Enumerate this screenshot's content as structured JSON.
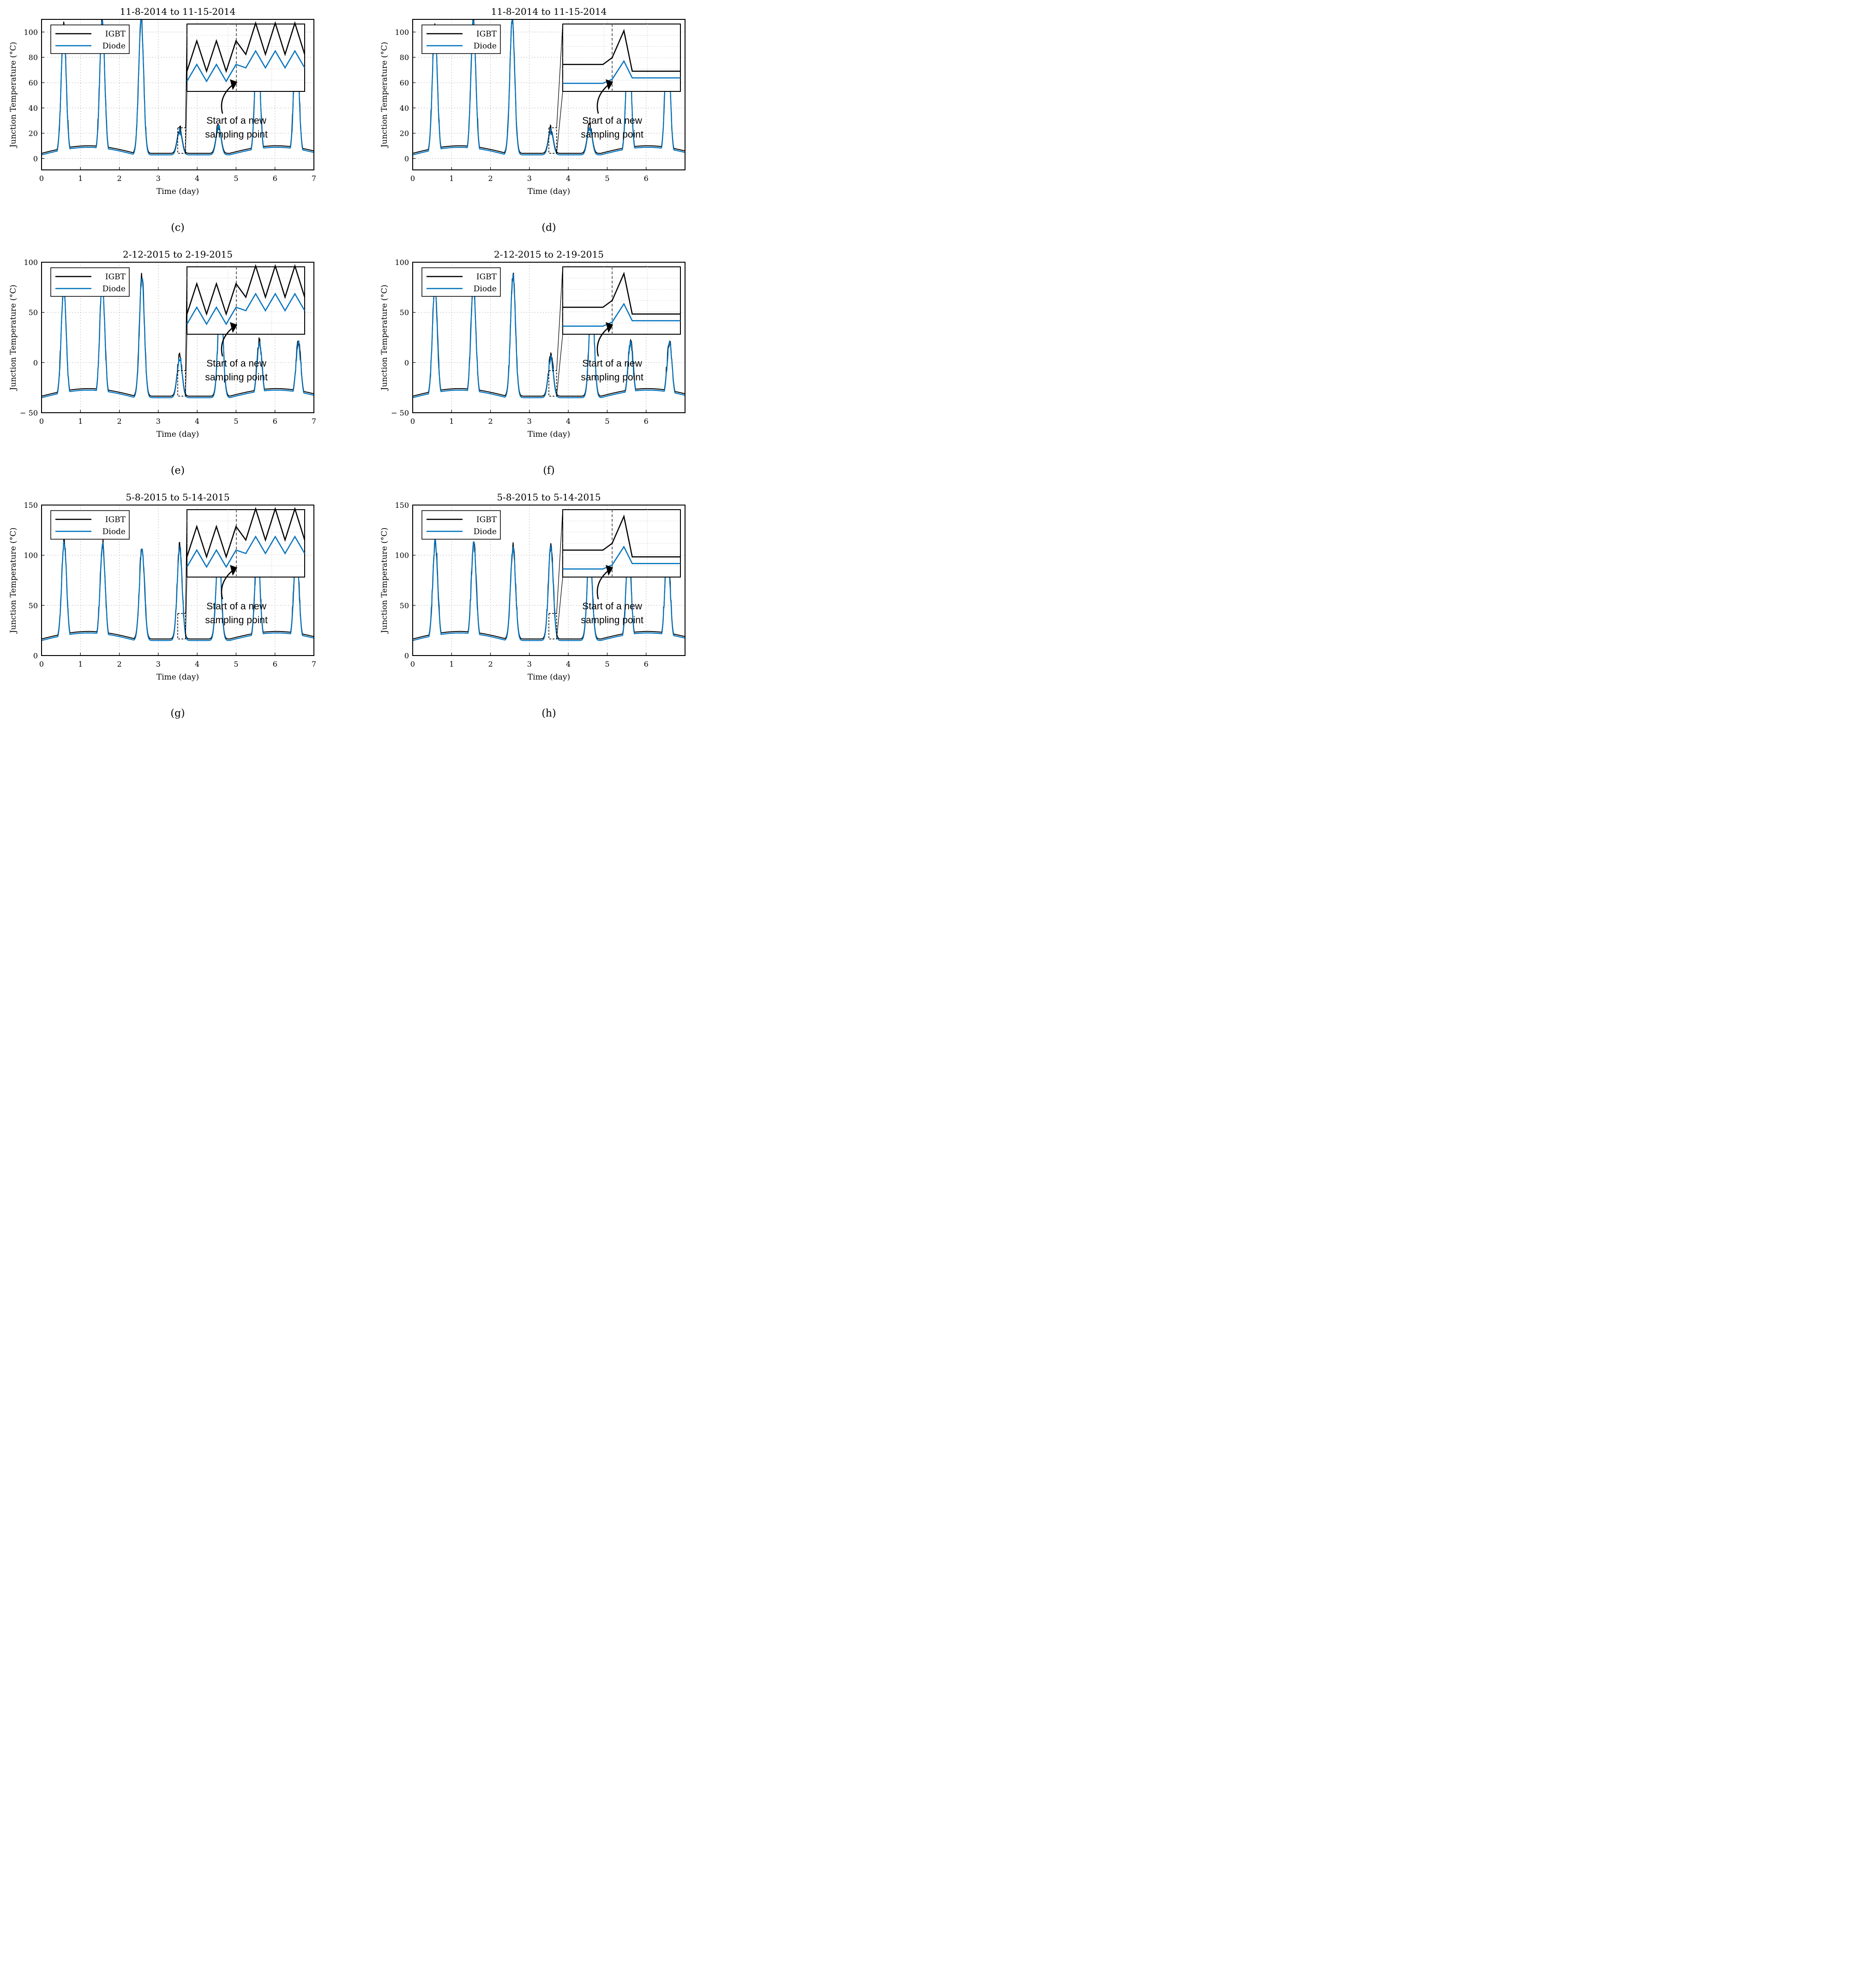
{
  "colors": {
    "igbt": "#000000",
    "diode": "#0072BD",
    "grid": "#b0b0b0",
    "axis": "#000000"
  },
  "chart_data": [
    {
      "caption": "(c)",
      "type": "line",
      "title": "11-8-2014 to 11-15-2014",
      "xlabel": "Time (day)",
      "ylabel": "Junction Temperature (°C)",
      "xlim": [
        0,
        7
      ],
      "ylim": [
        -9,
        110
      ],
      "xticks": [
        0,
        1,
        2,
        3,
        4,
        5,
        6,
        7
      ],
      "yticks": [
        0,
        20,
        40,
        60,
        80,
        100
      ],
      "ytick_labels": [
        "0",
        "20",
        "40",
        "60",
        "80",
        "100"
      ],
      "legend": [
        "IGBT",
        "Diode"
      ],
      "peaks": [
        [
          0.57,
          105
        ],
        [
          1.56,
          108
        ],
        [
          2.56,
          110
        ],
        [
          3.55,
          22
        ],
        [
          4.55,
          25
        ],
        [
          5.55,
          100
        ],
        [
          6.55,
          100
        ]
      ],
      "inset_kind": "zigzag",
      "annotation": [
        "Start of a new",
        "sampling point"
      ]
    },
    {
      "caption": "(d)",
      "type": "line",
      "title": "11-8-2014 to 11-15-2014",
      "xlabel": "Time (day)",
      "ylabel": "Junction Temperature (°C)",
      "xlim": [
        0,
        7
      ],
      "ylim": [
        -9,
        110
      ],
      "xticks": [
        0,
        1,
        2,
        3,
        4,
        5,
        6
      ],
      "yticks": [
        0,
        20,
        40,
        60,
        80,
        100
      ],
      "ytick_labels": [
        "0",
        "20",
        "40",
        "60",
        "80",
        "100"
      ],
      "legend": [
        "IGBT",
        "Diode"
      ],
      "peaks": [
        [
          0.57,
          105
        ],
        [
          1.56,
          108
        ],
        [
          2.56,
          110
        ],
        [
          3.55,
          22
        ],
        [
          4.55,
          25
        ],
        [
          5.55,
          100
        ],
        [
          6.55,
          100
        ]
      ],
      "inset_kind": "single",
      "annotation": [
        "Start of a new",
        "sampling point"
      ]
    },
    {
      "caption": "(e)",
      "type": "line",
      "title": "2-12-2015 to 2-19-2015",
      "xlabel": "Time (day)",
      "ylabel": "Junction Temperature (°C)",
      "xlim": [
        0,
        7
      ],
      "ylim": [
        -50,
        100
      ],
      "xticks": [
        0,
        1,
        2,
        3,
        4,
        5,
        6,
        7
      ],
      "yticks": [
        -50,
        0,
        50,
        100
      ],
      "ytick_labels": [
        "− 50",
        "0",
        "50",
        "100"
      ],
      "legend": [
        "IGBT",
        "Diode"
      ],
      "peaks": [
        [
          0.57,
          75
        ],
        [
          1.56,
          80
        ],
        [
          2.58,
          85
        ],
        [
          3.55,
          5
        ],
        [
          4.6,
          70
        ],
        [
          5.6,
          20
        ],
        [
          6.6,
          19
        ]
      ],
      "inset_kind": "zigzag",
      "annotation": [
        "Start of a new",
        "sampling point"
      ]
    },
    {
      "caption": "(f)",
      "type": "line",
      "title": "2-12-2015 to 2-19-2015",
      "xlabel": "Time (day)",
      "ylabel": "Junction Temperature (°C)",
      "xlim": [
        0,
        7
      ],
      "ylim": [
        -50,
        100
      ],
      "xticks": [
        0,
        1,
        2,
        3,
        4,
        5,
        6
      ],
      "yticks": [
        -50,
        0,
        50,
        100
      ],
      "ytick_labels": [
        "− 50",
        "0",
        "50",
        "100"
      ],
      "legend": [
        "IGBT",
        "Diode"
      ],
      "peaks": [
        [
          0.57,
          75
        ],
        [
          1.56,
          80
        ],
        [
          2.58,
          85
        ],
        [
          3.55,
          5
        ],
        [
          4.6,
          70
        ],
        [
          5.6,
          20
        ],
        [
          6.6,
          19
        ]
      ],
      "inset_kind": "single",
      "annotation": [
        "Start of a new",
        "sampling point"
      ]
    },
    {
      "caption": "(g)",
      "type": "line",
      "title": "5-8-2015 to 5-14-2015",
      "xlabel": "Time (day)",
      "ylabel": "Junction Temperature (°C)",
      "xlim": [
        0,
        7
      ],
      "ylim": [
        0,
        150
      ],
      "xticks": [
        0,
        1,
        2,
        3,
        4,
        5,
        6,
        7
      ],
      "yticks": [
        0,
        50,
        100,
        150
      ],
      "ytick_labels": [
        "0",
        "50",
        "100",
        "150"
      ],
      "legend": [
        "IGBT",
        "Diode"
      ],
      "peaks": [
        [
          0.58,
          113
        ],
        [
          1.57,
          111
        ],
        [
          2.58,
          108
        ],
        [
          3.55,
          108
        ],
        [
          4.55,
          108
        ],
        [
          5.55,
          108
        ],
        [
          6.55,
          110
        ]
      ],
      "inset_kind": "zigzag",
      "annotation": [
        "Start of a new",
        "sampling point"
      ]
    },
    {
      "caption": "(h)",
      "type": "line",
      "title": "5-8-2015 to 5-14-2015",
      "xlabel": "Time (day)",
      "ylabel": "Junction Temperature (°C)",
      "xlim": [
        0,
        7
      ],
      "ylim": [
        0,
        150
      ],
      "xticks": [
        0,
        1,
        2,
        3,
        4,
        5,
        6
      ],
      "yticks": [
        0,
        50,
        100,
        150
      ],
      "ytick_labels": [
        "0",
        "50",
        "100",
        "150"
      ],
      "legend": [
        "IGBT",
        "Diode"
      ],
      "peaks": [
        [
          0.58,
          113
        ],
        [
          1.57,
          111
        ],
        [
          2.58,
          108
        ],
        [
          3.55,
          108
        ],
        [
          4.55,
          108
        ],
        [
          5.55,
          108
        ],
        [
          6.55,
          110
        ]
      ],
      "inset_kind": "single",
      "annotation": [
        "Start of a new",
        "sampling point"
      ]
    }
  ]
}
